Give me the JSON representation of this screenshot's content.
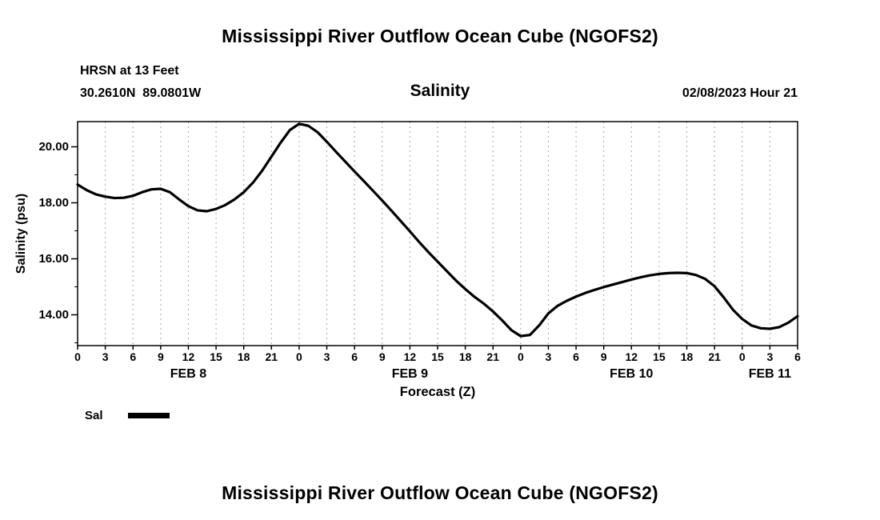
{
  "titles": {
    "top": "Mississippi River Outflow Ocean Cube (NGOFS2)",
    "bottom": "Mississippi River Outflow Ocean Cube (NGOFS2)"
  },
  "header": {
    "station": "HRSN at 13 Feet",
    "coordinates": "30.2610N  89.0801W",
    "plot_title": "Salinity",
    "run_time": "02/08/2023 Hour 21"
  },
  "legend": {
    "label": "Sal"
  },
  "colors": {
    "line": "#000000",
    "grid": "#a8a8a8",
    "axis": "#000000",
    "text": "#000000",
    "background": "#ffffff"
  },
  "chart_data": {
    "type": "line",
    "title": "Salinity",
    "xlabel": "Forecast (Z)",
    "ylabel": "Salinity (psu)",
    "ylim": [
      12.9,
      20.9
    ],
    "xlim_hours": [
      0,
      78
    ],
    "grid": "vertical-dashed",
    "legend_position": "below-left",
    "y_major_ticks": [
      14,
      16,
      18,
      20
    ],
    "y_major_tick_labels": [
      "14.00",
      "16.00",
      "18.00",
      "20.00"
    ],
    "y_minor_ticks": [
      13,
      15,
      17,
      19
    ],
    "x_tick_interval_hours": 3,
    "x_tick_labels": [
      "0",
      "3",
      "6",
      "9",
      "12",
      "15",
      "18",
      "21",
      "0",
      "3",
      "6",
      "9",
      "12",
      "15",
      "18",
      "21",
      "0",
      "3",
      "6",
      "9",
      "12",
      "15",
      "18",
      "21",
      "0",
      "3",
      "6"
    ],
    "day_labels": [
      {
        "label": "FEB 8",
        "hour": 12
      },
      {
        "label": "FEB 9",
        "hour": 36
      },
      {
        "label": "FEB 10",
        "hour": 60
      },
      {
        "label": "FEB 11",
        "hour": 75
      }
    ],
    "series": [
      {
        "name": "Sal",
        "color": "#000000",
        "x_hours": [
          0,
          1,
          2,
          3,
          4,
          5,
          6,
          7,
          8,
          9,
          10,
          11,
          12,
          13,
          14,
          15,
          16,
          17,
          18,
          19,
          20,
          21,
          22,
          23,
          24,
          25,
          26,
          27,
          28,
          29,
          30,
          31,
          32,
          33,
          34,
          35,
          36,
          37,
          38,
          39,
          40,
          41,
          42,
          43,
          44,
          45,
          46,
          47,
          48,
          49,
          50,
          51,
          52,
          53,
          54,
          55,
          56,
          57,
          58,
          59,
          60,
          61,
          62,
          63,
          64,
          65,
          66,
          67,
          68,
          69,
          70,
          71,
          72,
          73,
          74,
          75,
          76,
          77,
          78
        ],
        "values": [
          18.65,
          18.45,
          18.3,
          18.22,
          18.17,
          18.18,
          18.25,
          18.38,
          18.48,
          18.5,
          18.38,
          18.12,
          17.88,
          17.73,
          17.7,
          17.78,
          17.92,
          18.12,
          18.38,
          18.72,
          19.15,
          19.65,
          20.15,
          20.6,
          20.82,
          20.75,
          20.52,
          20.18,
          19.82,
          19.47,
          19.12,
          18.78,
          18.43,
          18.08,
          17.72,
          17.35,
          16.98,
          16.6,
          16.24,
          15.9,
          15.56,
          15.22,
          14.92,
          14.64,
          14.4,
          14.12,
          13.8,
          13.45,
          13.24,
          13.28,
          13.62,
          14.05,
          14.32,
          14.5,
          14.65,
          14.78,
          14.89,
          14.99,
          15.08,
          15.17,
          15.26,
          15.34,
          15.41,
          15.46,
          15.49,
          15.5,
          15.49,
          15.42,
          15.28,
          15.02,
          14.62,
          14.18,
          13.85,
          13.62,
          13.52,
          13.5,
          13.56,
          13.72,
          13.95
        ]
      }
    ]
  }
}
